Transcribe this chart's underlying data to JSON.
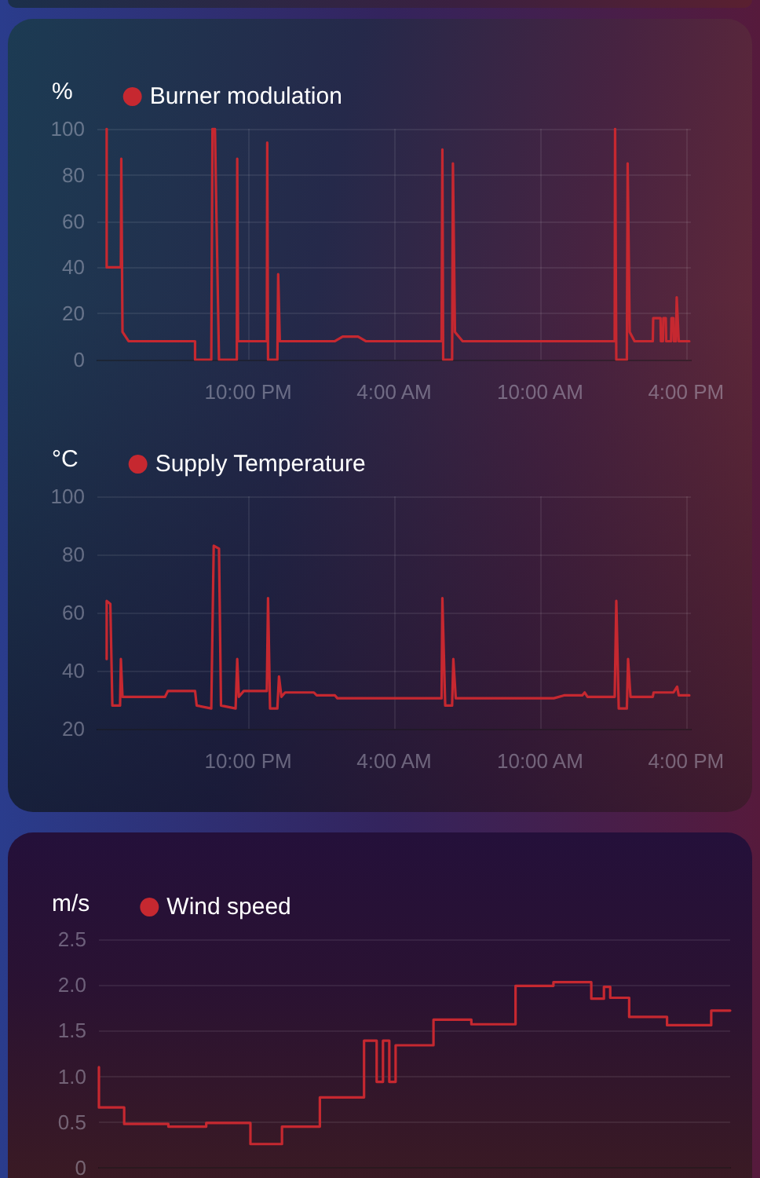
{
  "chart_data": [
    {
      "type": "line",
      "ylabel": "%",
      "x": [
        "--01-01T16:11",
        "--01-01T16:11",
        "--01-01T16:46",
        "--01-01T16:47",
        "--01-01T16:50",
        "--01-01T17:05",
        "--01-01T19:49",
        "--01-01T19:49",
        "--01-01T20:29",
        "--01-01T20:32",
        "--01-01T20:38",
        "--01-01T20:48",
        "--01-01T21:32",
        "--01-01T21:33",
        "--01-01T21:35",
        "--01-01T22:46",
        "--01-01T22:47",
        "--01-01T22:49",
        "--01-01T23:12",
        "--01-01T23:14",
        "--01-01T23:18",
        "--01-02T01:34",
        "--01-02T01:53",
        "--01-02T02:31",
        "--01-02T02:50",
        "--01-02T05:57",
        "--01-02T05:59",
        "--01-02T06:01",
        "--01-02T06:23",
        "--01-02T06:25",
        "--01-02T06:30",
        "--01-02T06:49",
        "--01-02T13:04",
        "--01-02T13:05",
        "--01-02T13:08",
        "--01-02T13:34",
        "--01-02T13:36",
        "--01-02T13:41",
        "--01-02T13:53",
        "--01-02T14:38",
        "--01-02T14:39",
        "--01-02T14:57",
        "--01-02T14:58",
        "--01-02T15:03",
        "--01-02T15:04",
        "--01-02T15:10",
        "--01-02T15:11",
        "--01-02T15:23",
        "--01-02T15:24",
        "--01-02T15:29",
        "--01-02T15:30",
        "--01-02T15:35",
        "--01-02T15:37",
        "--01-02T15:42",
        "--01-02T16:08"
      ],
      "series": [
        {
          "name": "Burner modulation",
          "color": "#c62830",
          "values": [
            100,
            40,
            40,
            87,
            12,
            8,
            8,
            0,
            0,
            100,
            100,
            0,
            0,
            87,
            8,
            8,
            94,
            0,
            0,
            37,
            8,
            8,
            10,
            10,
            8,
            8,
            91,
            0,
            0,
            85,
            12,
            8,
            8,
            100,
            0,
            0,
            85,
            12,
            8,
            8,
            18,
            18,
            8,
            8,
            18,
            18,
            8,
            8,
            18,
            18,
            8,
            8,
            27,
            8,
            8
          ]
        }
      ],
      "xlim": [
        "--01-01T15:48",
        "--01-02T16:12"
      ],
      "xticks": [
        {
          "value": "--01-01T22:00",
          "label": "10:00 PM"
        },
        {
          "value": "--01-02T04:00",
          "label": "4:00 AM"
        },
        {
          "value": "--01-02T10:00",
          "label": "10:00 AM"
        },
        {
          "value": "--01-02T16:00",
          "label": "4:00 PM"
        }
      ],
      "ylim": [
        0,
        100
      ],
      "yticks": [
        0,
        20,
        40,
        60,
        80,
        100
      ],
      "grid": true,
      "legend": "top left"
    },
    {
      "type": "line",
      "ylabel": "°C",
      "x": [
        "--01-01T16:11",
        "--01-01T16:11",
        "--01-01T16:20",
        "--01-01T16:25",
        "--01-01T16:44",
        "--01-01T16:46",
        "--01-01T16:50",
        "--01-01T18:35",
        "--01-01T18:42",
        "--01-01T19:49",
        "--01-01T19:53",
        "--01-01T20:29",
        "--01-01T20:35",
        "--01-01T20:48",
        "--01-01T20:53",
        "--01-01T21:29",
        "--01-01T21:33",
        "--01-01T21:37",
        "--01-01T21:49",
        "--01-01T22:46",
        "--01-01T22:49",
        "--01-01T22:54",
        "--01-01T23:12",
        "--01-01T23:16",
        "--01-01T23:22",
        "--01-01T23:31",
        "--01-02T00:42",
        "--01-02T00:49",
        "--01-02T01:34",
        "--01-02T01:40",
        "--01-02T05:57",
        "--01-02T05:59",
        "--01-02T06:06",
        "--01-02T06:23",
        "--01-02T06:26",
        "--01-02T06:32",
        "--01-02T10:34",
        "--01-02T10:59",
        "--01-02T11:44",
        "--01-02T11:50",
        "--01-02T11:57",
        "--01-02T13:04",
        "--01-02T13:08",
        "--01-02T13:14",
        "--01-02T13:34",
        "--01-02T13:37",
        "--01-02T13:43",
        "--01-02T14:38",
        "--01-02T14:40",
        "--01-02T15:29",
        "--01-02T15:38",
        "--01-02T15:42",
        "--01-02T16:08"
      ],
      "series": [
        {
          "name": "Supply Temperature",
          "color": "#c62830",
          "values": [
            44,
            64,
            63,
            28,
            28,
            44,
            31,
            31,
            33,
            33,
            28,
            27,
            83,
            82,
            28,
            27,
            44,
            31,
            33,
            33,
            65,
            27,
            27,
            38,
            31,
            32.5,
            32.5,
            31.5,
            31.5,
            30.5,
            30.5,
            65,
            28,
            28,
            44,
            30.5,
            30.5,
            31.5,
            31.5,
            32.5,
            31,
            31,
            64,
            27,
            27,
            44,
            31,
            31,
            32.5,
            32.5,
            34.5,
            31.5,
            31.5
          ]
        }
      ],
      "xlim": [
        "--01-01T15:48",
        "--01-02T16:12"
      ],
      "xticks": [
        {
          "value": "--01-01T22:00",
          "label": "10:00 PM"
        },
        {
          "value": "--01-02T04:00",
          "label": "4:00 AM"
        },
        {
          "value": "--01-02T10:00",
          "label": "10:00 AM"
        },
        {
          "value": "--01-02T16:00",
          "label": "4:00 PM"
        }
      ],
      "ylim": [
        20,
        100
      ],
      "yticks": [
        20,
        40,
        60,
        80,
        100
      ],
      "grid": true,
      "legend": "top left"
    },
    {
      "type": "step",
      "ylabel": "m/s",
      "categories": [
        null,
        null,
        null,
        null,
        null,
        null,
        null,
        null,
        null,
        null,
        null,
        null,
        null,
        null,
        null,
        null,
        null,
        null,
        null,
        null,
        null,
        null,
        null,
        null,
        null,
        null,
        null,
        null,
        null,
        null,
        null,
        null,
        null,
        null,
        null,
        null,
        null,
        null,
        null,
        null,
        null,
        null,
        null,
        null,
        null,
        null,
        null,
        null,
        null,
        null,
        null,
        null,
        null,
        null,
        null,
        null,
        null,
        null,
        null,
        null,
        null,
        null,
        null,
        null,
        null,
        null,
        null,
        null,
        null,
        null,
        null,
        null,
        null,
        null,
        null,
        null,
        null,
        null,
        null,
        null,
        null,
        null,
        null,
        null,
        null,
        null,
        null,
        null,
        null,
        null,
        null,
        null,
        null,
        null,
        null,
        null,
        null,
        null,
        null,
        null,
        null
      ],
      "series": [
        {
          "name": "Wind speed",
          "color": "#c62830",
          "values": [
            1.1,
            0.66,
            0.66,
            0.66,
            0.66,
            0.48,
            0.48,
            0.48,
            0.48,
            0.48,
            0.48,
            0.48,
            0.45,
            0.45,
            0.45,
            0.45,
            0.45,
            0.45,
            0.49,
            0.49,
            0.49,
            0.49,
            0.49,
            0.49,
            0.49,
            0.26,
            0.26,
            0.26,
            0.26,
            0.26,
            0.45,
            0.45,
            0.45,
            0.45,
            0.45,
            0.45,
            0.77,
            0.77,
            0.77,
            0.77,
            0.77,
            0.77,
            0.77,
            1.39,
            1.39,
            0.94,
            1.39,
            0.94,
            1.34,
            1.34,
            1.34,
            1.34,
            1.34,
            1.34,
            1.62,
            1.62,
            1.62,
            1.62,
            1.62,
            1.62,
            1.57,
            1.57,
            1.57,
            1.57,
            1.57,
            1.57,
            1.57,
            1.99,
            1.99,
            1.99,
            1.99,
            1.99,
            1.99,
            2.03,
            2.03,
            2.03,
            2.03,
            2.03,
            2.03,
            1.85,
            1.85,
            1.98,
            1.86,
            1.86,
            1.86,
            1.65,
            1.65,
            1.65,
            1.65,
            1.65,
            1.65,
            1.56,
            1.56,
            1.56,
            1.56,
            1.56,
            1.56,
            1.56,
            1.72,
            1.72,
            1.72
          ]
        }
      ],
      "ylim": [
        0,
        2.5
      ],
      "yticks": [
        0,
        0.5,
        {
          "value": 1,
          "label": "1.0"
        },
        1.5,
        {
          "value": 2,
          "label": "2.0"
        },
        2.5
      ],
      "grid": "y",
      "legend": "top left",
      "tick_labels": "y"
    }
  ]
}
